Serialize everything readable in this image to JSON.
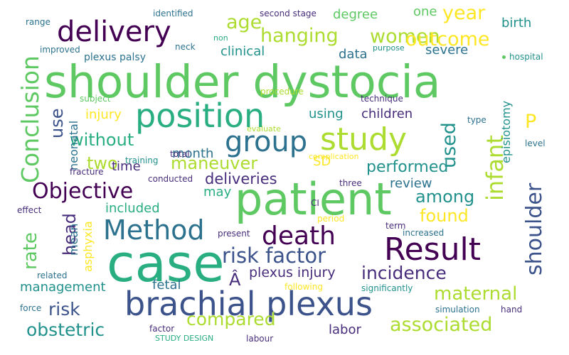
{
  "colors": {
    "dark_purple": "#440154",
    "purple": "#472d7b",
    "indigo": "#3b528b",
    "blue": "#2c728e",
    "teal": "#21918c",
    "sea_green": "#28ae80",
    "green": "#5ec962",
    "light_green": "#addc30",
    "yellow": "#fde725"
  },
  "words": {
    "shoulder_dystocia": "shoulder dystocia",
    "case": "case",
    "patient": "patient",
    "brachial_plexus": "brachial plexus",
    "position": "position",
    "result": "Result",
    "study": "study",
    "delivery": "delivery",
    "group": "group",
    "method": "Method",
    "death": "death",
    "objective": "Objective",
    "risk_factor": "risk factor",
    "conclusion": "Conclusion",
    "infant": "infant",
    "shoulder": "shoulder",
    "maneuver": "maneuver",
    "hanging": "hanging",
    "women": "women",
    "outcome": "outcome",
    "age": "age",
    "year": "year",
    "associated": "associated",
    "compared": "compared",
    "obstetric": "obstetric",
    "maternal": "maternal",
    "risk": "risk",
    "incidence": "incidence",
    "without": "without",
    "used": "used",
    "rate": "rate",
    "head": "head",
    "performed": "performed",
    "found": "found",
    "among": "among",
    "plexus_injury": "plexus injury",
    "deliveries": "deliveries",
    "two": "two",
    "use": "use",
    "p": "P",
    "a_circ": "Â",
    "degree": "degree",
    "one": "one",
    "birth": "birth",
    "clinical": "clinical",
    "data": "data",
    "severe": "severe",
    "children": "children",
    "using": "using",
    "injury": "injury",
    "time": "time",
    "month": "month",
    "sd": "SD",
    "review": "review",
    "episiotomy": "episiotomy",
    "neonatal": "neonatal",
    "may": "may",
    "included": "included",
    "management": "management",
    "fetal": "fetal",
    "labor": "labor",
    "mean": "mean",
    "asphyxia": "asphyxia",
    "plexus_palsy": "plexus palsy",
    "identified": "identified",
    "second_stage": "second stage",
    "range": "range",
    "neck": "neck",
    "non": "non",
    "improved": "improved",
    "purpose": "purpose",
    "hospital": "hospital",
    "subject": "subject",
    "procedure": "procedure",
    "technique": "technique",
    "evaluate": "evaluate",
    "type": "type",
    "level": "level",
    "training": "training",
    "total": "total",
    "complication": "complication",
    "fracture": "fracture",
    "conducted": "conducted",
    "three": "three",
    "effect": "effect",
    "ci": "CI",
    "period": "period",
    "present": "present",
    "term": "term",
    "increased": "increased",
    "related": "related",
    "following": "following",
    "significantly": "significantly",
    "force": "force",
    "simulation": "simulation",
    "hand": "hand",
    "factor": "factor",
    "study_design": "STUDY DESIGN",
    "labour": "labour"
  }
}
